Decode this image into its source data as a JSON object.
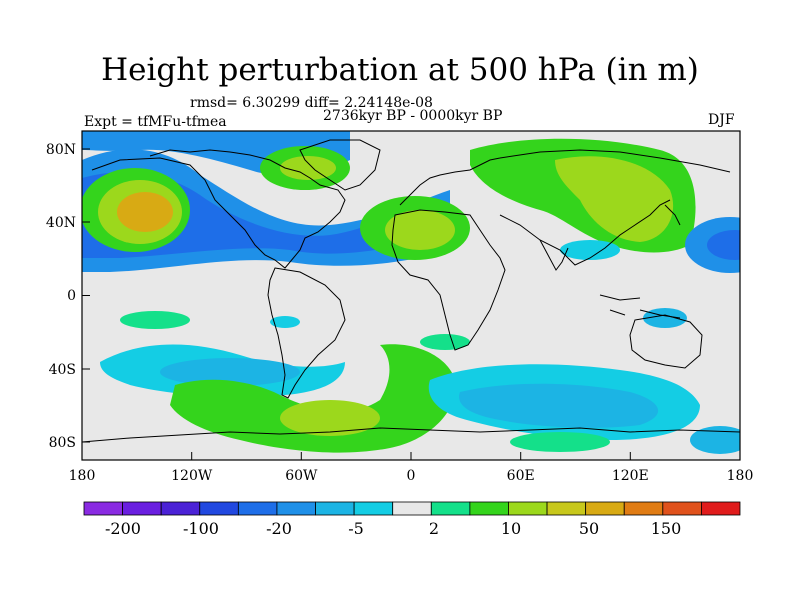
{
  "title": "Height perturbation at 500 hPa (in m)",
  "stats": "rmsd= 6.30299 diff= 2.24148e-08",
  "experiment": "Expt = tfMFu-tfmea",
  "period": "2736kyr BP - 0000kyr BP",
  "season": "DJF",
  "axes": {
    "x_ticks": [
      "180",
      "120W",
      "60W",
      "0",
      "60E",
      "120E",
      "180"
    ],
    "y_ticks": [
      "80N",
      "40N",
      "0",
      "40S",
      "80S"
    ]
  },
  "colorbar": {
    "colors": [
      "#8a2be2",
      "#6a1fe0",
      "#4b22d6",
      "#2148e0",
      "#1e6ee8",
      "#1f90e8",
      "#1cb4e4",
      "#14cde4",
      "#e8e8e8",
      "#14e08a",
      "#34d41c",
      "#9cd81c",
      "#c8c81c",
      "#d8aa14",
      "#e07c14",
      "#e0521c",
      "#e01c1c"
    ],
    "labels": [
      "-200",
      "-100",
      "-20",
      "-5",
      "2",
      "10",
      "50",
      "150"
    ]
  },
  "fields": {
    "ocean": "#e8e8e8",
    "coast": "#000000"
  }
}
